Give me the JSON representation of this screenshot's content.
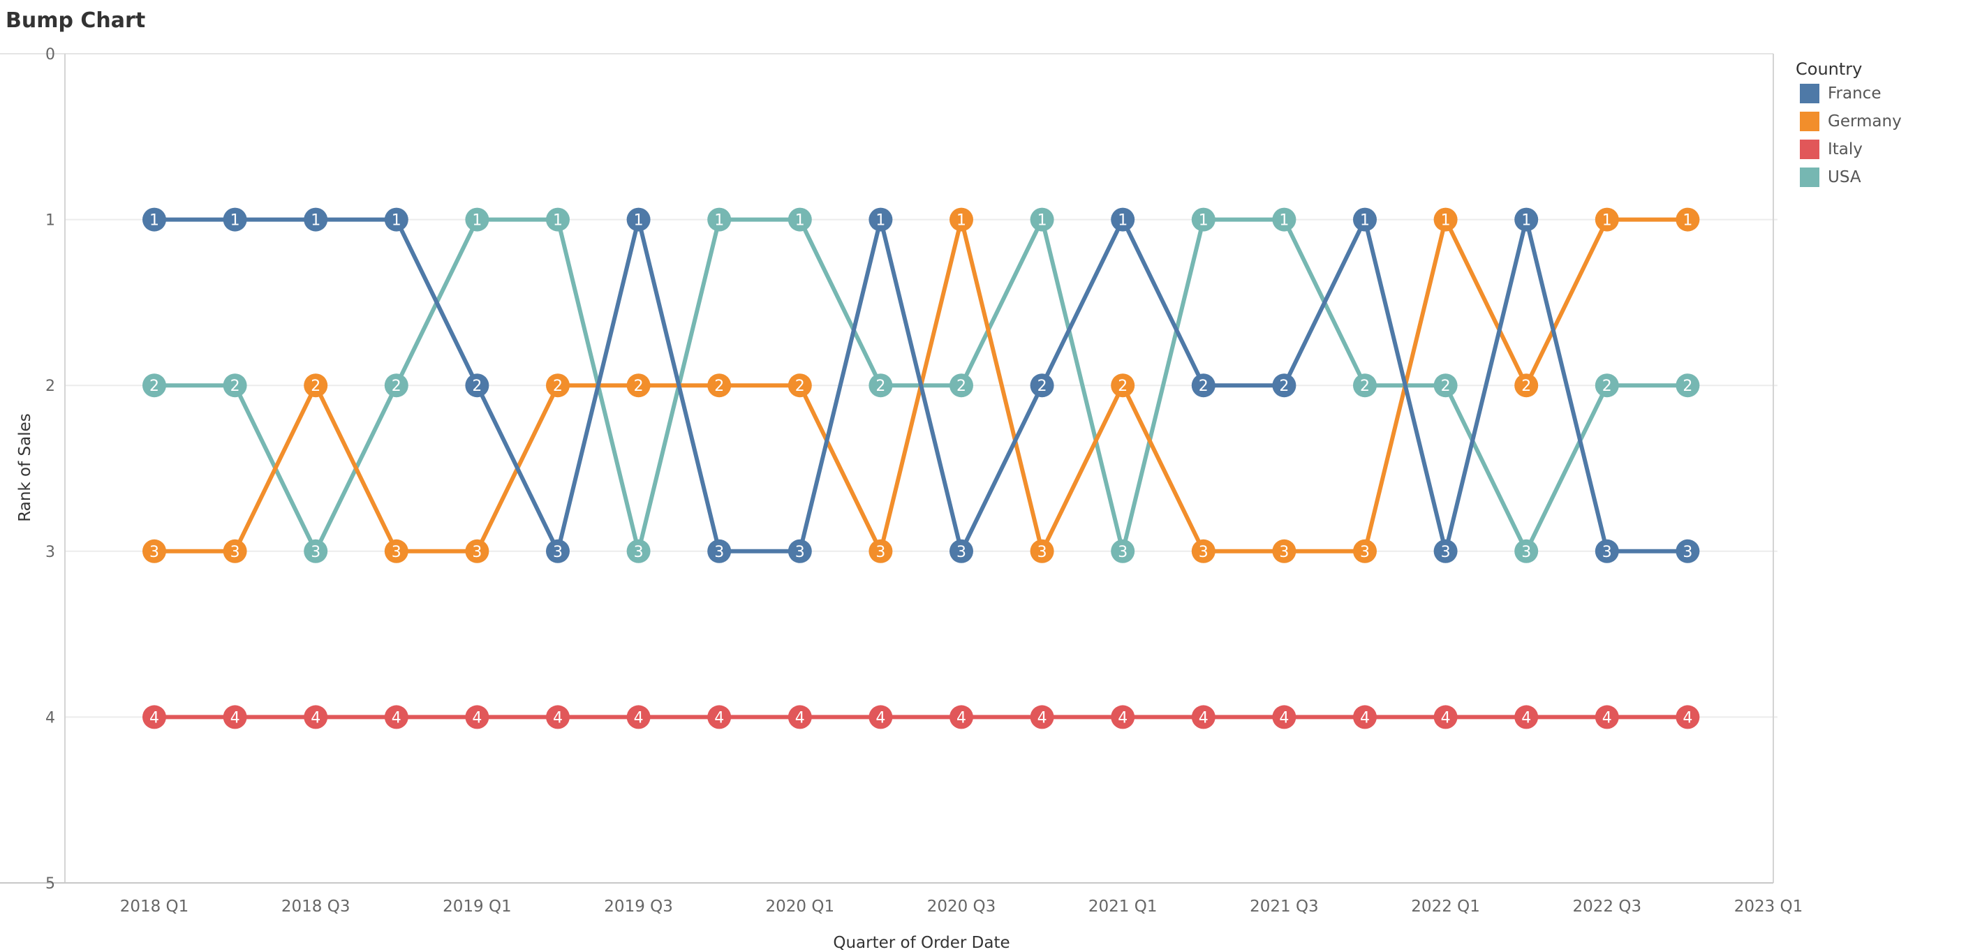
{
  "chart_data": {
    "type": "line",
    "title": "Bump Chart",
    "xlabel": "Quarter of Order Date",
    "ylabel": "Rank of Sales",
    "y_axis_reversed": true,
    "ylim": [
      0,
      5
    ],
    "yticks": [
      "0",
      "1",
      "2",
      "3",
      "4",
      "5"
    ],
    "xticks": [
      "2018 Q1",
      "2018 Q3",
      "2019 Q1",
      "2019 Q3",
      "2020 Q1",
      "2020 Q3",
      "2021 Q1",
      "2021 Q3",
      "2022 Q1",
      "2022 Q3",
      "2023 Q1"
    ],
    "x": [
      "2018 Q1",
      "2018 Q2",
      "2018 Q3",
      "2018 Q4",
      "2019 Q1",
      "2019 Q2",
      "2019 Q3",
      "2019 Q4",
      "2020 Q1",
      "2020 Q2",
      "2020 Q3",
      "2020 Q4",
      "2021 Q1",
      "2021 Q2",
      "2021 Q3",
      "2021 Q4",
      "2022 Q1",
      "2022 Q2",
      "2022 Q3",
      "2022 Q4"
    ],
    "grid": true,
    "legend_title": "Country",
    "legend_position": "top-right",
    "series": [
      {
        "name": "France",
        "color": "#4e79a7",
        "values": [
          1,
          1,
          1,
          1,
          2,
          3,
          1,
          3,
          3,
          1,
          3,
          2,
          1,
          2,
          2,
          1,
          3,
          1,
          3,
          3
        ]
      },
      {
        "name": "Germany",
        "color": "#f28e2b",
        "values": [
          3,
          3,
          2,
          3,
          3,
          2,
          2,
          2,
          2,
          3,
          1,
          3,
          2,
          3,
          3,
          3,
          1,
          2,
          1,
          1
        ]
      },
      {
        "name": "Italy",
        "color": "#e15759",
        "values": [
          4,
          4,
          4,
          4,
          4,
          4,
          4,
          4,
          4,
          4,
          4,
          4,
          4,
          4,
          4,
          4,
          4,
          4,
          4,
          4
        ]
      },
      {
        "name": "USA",
        "color": "#76b7b2",
        "values": [
          2,
          2,
          3,
          2,
          1,
          1,
          3,
          1,
          1,
          2,
          2,
          1,
          3,
          1,
          1,
          2,
          2,
          3,
          2,
          2
        ]
      }
    ]
  }
}
